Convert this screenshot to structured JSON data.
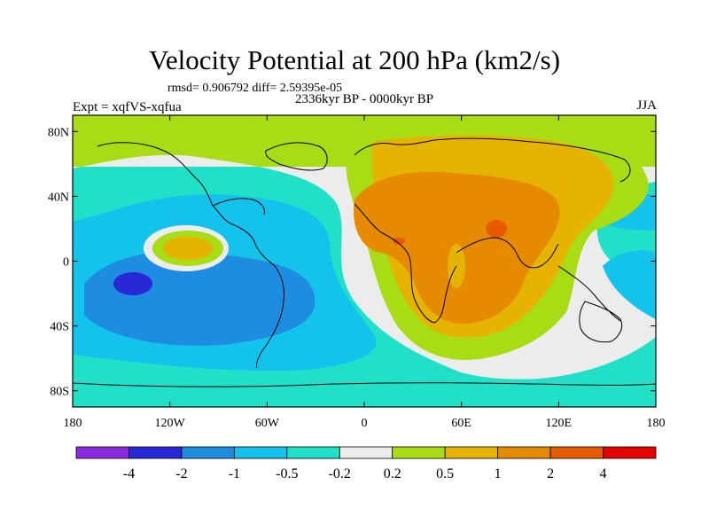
{
  "title": "Velocity Potential at 200 hPa (km2/s)",
  "stats": "rmsd= 0.906792 diff= 2.59395e-05",
  "subtitle": "2336kyr BP - 0000kyr BP",
  "left_label": "Expt = xqfVS-xqfua",
  "right_label": "JJA",
  "map": {
    "projection": "cylindrical equidistant",
    "lon_range": [
      -180,
      180
    ],
    "lat_range": [
      -90,
      90
    ],
    "lon_ticks": [
      {
        "value": -180,
        "label": "180"
      },
      {
        "value": -120,
        "label": "120W"
      },
      {
        "value": -60,
        "label": "60W"
      },
      {
        "value": 0,
        "label": "0"
      },
      {
        "value": 60,
        "label": "60E"
      },
      {
        "value": 120,
        "label": "120E"
      },
      {
        "value": 180,
        "label": "180"
      }
    ],
    "lat_ticks": [
      {
        "value": 80,
        "label": "80N"
      },
      {
        "value": 40,
        "label": "40N"
      },
      {
        "value": 0,
        "label": "0"
      },
      {
        "value": -40,
        "label": "40S"
      },
      {
        "value": -80,
        "label": "80S"
      }
    ]
  },
  "colorbar": {
    "colors": [
      "#8a2be2",
      "#2828d6",
      "#1e8ce0",
      "#14c3ec",
      "#21e0c8",
      "#ececec",
      "#a8dc14",
      "#e6b400",
      "#e68a00",
      "#e65a00",
      "#e60000"
    ],
    "labels": [
      "-4",
      "-2",
      "-1",
      "-0.5",
      "-0.2",
      "0.2",
      "0.5",
      "1",
      "2",
      "4"
    ]
  },
  "colors": {
    "background": "#ffffff",
    "coastline": "#000000"
  }
}
